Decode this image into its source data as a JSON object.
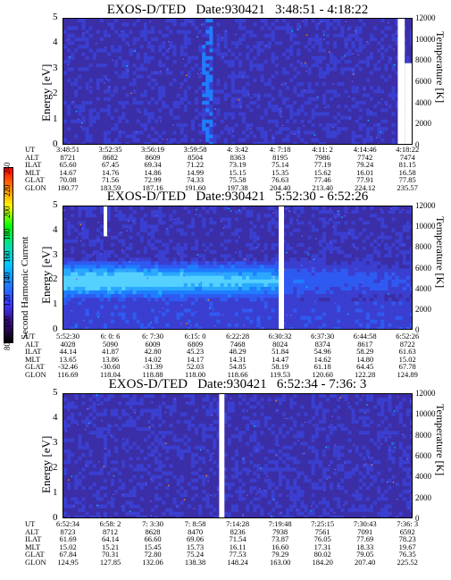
{
  "colorbar": {
    "label": "Second Harmonic Current",
    "ticks": [
      "80",
      "100",
      "120",
      "140",
      "160",
      "180",
      "200",
      "220",
      "240"
    ],
    "colors": [
      "#000000",
      "#3a0a7a",
      "#3a3aff",
      "#1e7dff",
      "#00c8ff",
      "#00e0a0",
      "#00ff00",
      "#ffff00",
      "#ff8000",
      "#ff0000"
    ]
  },
  "chart_data": [
    {
      "type": "heatmap",
      "title": "EXOS-D/TED   Date:930421   3:48:51 - 4:18:22",
      "ylabel": "Energy [eV]",
      "y2label": "Temperature [K]",
      "ylim": [
        0,
        5
      ],
      "y2lim": [
        0,
        12000
      ],
      "yticks": [
        "0",
        "1",
        "2",
        "3",
        "4",
        "5"
      ],
      "y2ticks": [
        "0",
        "2000",
        "4000",
        "6000",
        "8000",
        "10000",
        "12000"
      ],
      "gaps": [
        {
          "from": 0.955,
          "to": 0.975
        }
      ],
      "features": "near-uniform low intensity; bright streaks near 3:59-4:02",
      "ephemeris": {
        "labels": [
          "UT",
          "ALT",
          "ILAT",
          "MLT",
          "GLAT",
          "GLON"
        ],
        "columns": [
          [
            "3:48:51",
            "8721",
            "65.60",
            "14.67",
            "70.08",
            "180.77"
          ],
          [
            "3:52:35",
            "8682",
            "67.45",
            "14.76",
            "71.56",
            "183.59"
          ],
          [
            "3:56:19",
            "8609",
            "69.34",
            "14.86",
            "72.99",
            "187.16"
          ],
          [
            "3:59:58",
            "8504",
            "71.22",
            "14.99",
            "74.33",
            "191.60"
          ],
          [
            "4: 3:42",
            "8363",
            "73.19",
            "15.15",
            "75.58",
            "197.38"
          ],
          [
            "4: 7:18",
            "8195",
            "75.14",
            "15.35",
            "76.63",
            "204.40"
          ],
          [
            "4:11: 2",
            "7986",
            "77.19",
            "15.62",
            "77.46",
            "213.40"
          ],
          [
            "4:14:46",
            "7742",
            "79.24",
            "16.01",
            "77.91",
            "224.12"
          ],
          [
            "4:18:22",
            "7474",
            "81.15",
            "16.58",
            "77.85",
            "235.57"
          ]
        ]
      }
    },
    {
      "type": "heatmap",
      "title": "EXOS-D/TED   Date:930421   5:52:30 - 6:52:26",
      "ylabel": "Energy [eV]",
      "y2label": "Temperature [K]",
      "ylim": [
        0,
        5
      ],
      "y2lim": [
        0,
        12000
      ],
      "yticks": [
        "0",
        "1",
        "2",
        "3",
        "4",
        "5"
      ],
      "y2ticks": [
        "0",
        "2000",
        "4000",
        "6000",
        "8000",
        "10000",
        "12000"
      ],
      "gaps": [
        {
          "from": 0.115,
          "to": 0.125
        },
        {
          "from": 0.615,
          "to": 0.63
        }
      ],
      "features": "intense band between about 1.5 and 2.8 eV peaking near 2 eV on the left half",
      "ephemeris": {
        "labels": [
          "UT",
          "ALT",
          "ILAT",
          "MLT",
          "GLAT",
          "GLON"
        ],
        "columns": [
          [
            "5:52:30",
            "4028",
            "44.14",
            "13.65",
            "-32.46",
            "116.69"
          ],
          [
            "6: 0: 6",
            "5090",
            "41.87",
            "13.86",
            "-30.60",
            "118.04"
          ],
          [
            "6: 7:30",
            "6009",
            "42.80",
            "14.02",
            "-31.39",
            "118.88"
          ],
          [
            "6:15: 0",
            "6809",
            "45.23",
            "14.17",
            "52.03",
            "118.00"
          ],
          [
            "6:22:28",
            "7468",
            "48.29",
            "14.31",
            "54.85",
            "118.66"
          ],
          [
            "6:30:32",
            "8024",
            "51.84",
            "14.47",
            "58.19",
            "119.53"
          ],
          [
            "6:37:30",
            "8374",
            "54.96",
            "14.62",
            "61.18",
            "120.60"
          ],
          [
            "6:44:58",
            "8617",
            "58.29",
            "14.80",
            "64.45",
            "122.28"
          ],
          [
            "6:52:26",
            "8722",
            "61.63",
            "15.02",
            "67.78",
            "124.89"
          ]
        ]
      }
    },
    {
      "type": "heatmap",
      "title": "EXOS-D/TED   Date:930421   6:52:34 - 7:36: 3",
      "ylabel": "Energy [eV]",
      "y2label": "Temperature [K]",
      "ylim": [
        0,
        5
      ],
      "y2lim": [
        0,
        12000
      ],
      "yticks": [
        "0",
        "1",
        "2",
        "3",
        "4",
        "5"
      ],
      "y2ticks": [
        "0",
        "2000",
        "4000",
        "6000",
        "8000",
        "10000",
        "12000"
      ],
      "gaps": [
        {
          "from": 0.445,
          "to": 0.46
        }
      ],
      "features": "near-uniform low intensity",
      "ephemeris": {
        "labels": [
          "UT",
          "ALT",
          "ILAT",
          "MLT",
          "GLAT",
          "GLON"
        ],
        "columns": [
          [
            "6:52:34",
            "8723",
            "61.69",
            "15.02",
            "67.84",
            "124.95"
          ],
          [
            "6:58: 2",
            "8712",
            "64.14",
            "15.21",
            "70.31",
            "127.85"
          ],
          [
            "7: 3:30",
            "8628",
            "66.60",
            "15.45",
            "72.80",
            "132.06"
          ],
          [
            "7: 8:58",
            "8470",
            "69.06",
            "15.73",
            "75.24",
            "138.38"
          ],
          [
            "7:14:28",
            "8236",
            "71.54",
            "16.11",
            "77.53",
            "148.24"
          ],
          [
            "7:19:48",
            "7938",
            "73.87",
            "16.60",
            "79.29",
            "163.00"
          ],
          [
            "7:25:15",
            "7561",
            "76.05",
            "17.31",
            "80.02",
            "184.20"
          ],
          [
            "7:30:43",
            "7091",
            "77.69",
            "18.33",
            "79.05",
            "207.40"
          ],
          [
            "7:36: 3",
            "6592",
            "78.23",
            "19.67",
            "76.35",
            "225.52"
          ]
        ]
      }
    }
  ]
}
